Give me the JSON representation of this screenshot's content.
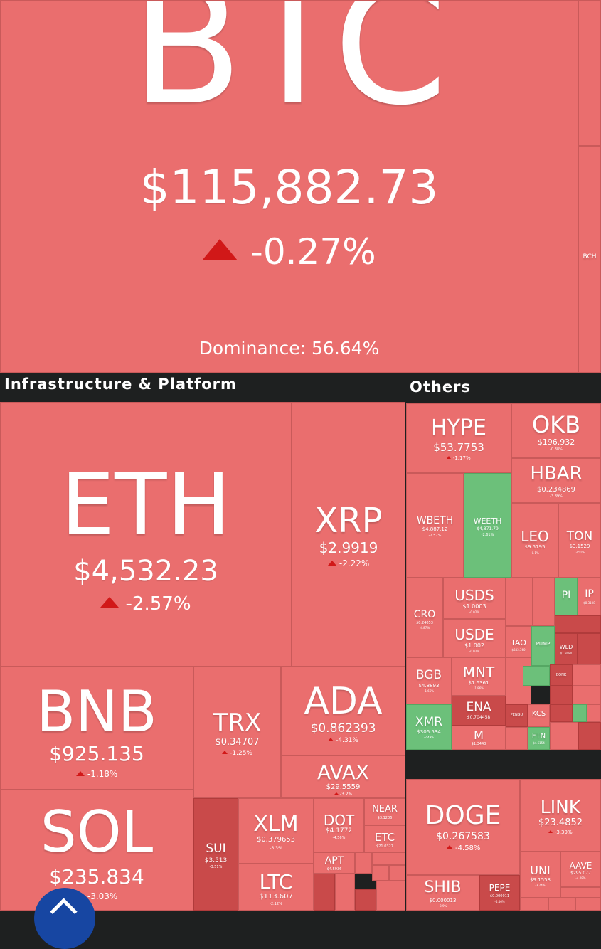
{
  "btc": {
    "symbol": "BTC",
    "price": "$115,882.73",
    "change": "-0.27%",
    "dominance": "Dominance: 56.64%"
  },
  "bch": {
    "symbol": "BCH"
  },
  "sections": {
    "infra": "Infrastructure & Platform",
    "others": "Others"
  },
  "infra": {
    "eth": {
      "symbol": "ETH",
      "price": "$4,532.23",
      "change": "-2.57%"
    },
    "xrp": {
      "symbol": "XRP",
      "price": "$2.9919",
      "change": "-2.22%"
    },
    "bnb": {
      "symbol": "BNB",
      "price": "$925.135",
      "change": "-1.18%"
    },
    "trx": {
      "symbol": "TRX",
      "price": "$0.34707",
      "change": "-1.25%"
    },
    "ada": {
      "symbol": "ADA",
      "price": "$0.862393",
      "change": "-4.31%"
    },
    "avax": {
      "symbol": "AVAX",
      "price": "$29.5559",
      "change": "-3.2%"
    },
    "sol": {
      "symbol": "SOL",
      "price": "$235.834",
      "change": "-3.03%"
    },
    "sui": {
      "symbol": "SUI",
      "price": "$3.513",
      "change": "-3.51%"
    },
    "xlm": {
      "symbol": "XLM",
      "price": "$0.379653",
      "change": "-3.3%"
    },
    "dot": {
      "symbol": "DOT",
      "price": "$4.1772",
      "change": "-4.56%"
    },
    "near": {
      "symbol": "NEAR",
      "price": "$3.1206"
    },
    "etc": {
      "symbol": "ETC",
      "price": "$21.0327"
    },
    "apt": {
      "symbol": "APT",
      "price": "$4.5936"
    },
    "ltc": {
      "symbol": "LTC",
      "price": "$113.607",
      "change": "-2.12%"
    }
  },
  "others": {
    "hype": {
      "symbol": "HYPE",
      "price": "$53.7753",
      "change": "-1.17%"
    },
    "okb": {
      "symbol": "OKB",
      "price": "$196.932",
      "change": "-0.38%"
    },
    "hbar": {
      "symbol": "HBAR",
      "price": "$0.234869",
      "change": "-3.89%"
    },
    "wbeth": {
      "symbol": "WBETH",
      "price": "$4,887.12",
      "change": "-2.57%"
    },
    "weeth": {
      "symbol": "WEETH",
      "price": "$4,871.79",
      "change": "-2.61%"
    },
    "leo": {
      "symbol": "LEO",
      "price": "$9.5795",
      "change": "-0.1%"
    },
    "ton": {
      "symbol": "TON",
      "price": "$3.1529",
      "change": "-3.51%"
    },
    "cro": {
      "symbol": "CRO",
      "price": "$0.24053",
      "change": "-4.87%"
    },
    "usds": {
      "symbol": "USDS",
      "price": "$1.0003",
      "change": "-0.02%"
    },
    "pi": {
      "symbol": "PI"
    },
    "ip": {
      "symbol": "IP",
      "price": "$8.3108"
    },
    "usde": {
      "symbol": "USDE",
      "price": "$1.002",
      "change": "-0.02%"
    },
    "tao": {
      "symbol": "TAO",
      "price": "$343.360"
    },
    "pump": {
      "symbol": "PUMP"
    },
    "wld": {
      "symbol": "WLD",
      "price": "$1.3080"
    },
    "bgb": {
      "symbol": "BGB",
      "price": "$4.8893",
      "change": "-1.66%"
    },
    "mnt": {
      "symbol": "MNT",
      "price": "$1.6361",
      "change": "-1.86%"
    },
    "ena": {
      "symbol": "ENA",
      "price": "$0.704458"
    },
    "xmr": {
      "symbol": "XMR",
      "price": "$306.534",
      "change": "-2.49%"
    },
    "m": {
      "symbol": "M",
      "price": "$1.3443"
    },
    "kcs": {
      "symbol": "KCS"
    },
    "ftn": {
      "symbol": "FTN",
      "price": "$4.6154"
    },
    "pengu": {
      "symbol": "PENGU"
    },
    "bonk": {
      "symbol": "BONK"
    },
    "doge": {
      "symbol": "DOGE",
      "price": "$0.267583",
      "change": "-4.58%"
    },
    "link": {
      "symbol": "LINK",
      "price": "$23.4852",
      "change": "-3.39%"
    },
    "uni": {
      "symbol": "UNI",
      "price": "$9.1558",
      "change": "-3.74%"
    },
    "aave": {
      "symbol": "AAVE",
      "price": "$295.077",
      "change": "-4.48%"
    },
    "shib": {
      "symbol": "SHIB",
      "price": "$0.000013",
      "change": "-3.9%"
    },
    "pepe": {
      "symbol": "PEPE",
      "price": "$0.000011",
      "change": "-5.46%"
    }
  },
  "colors": {
    "down": "#ea6e6e",
    "up": "#6cc07a",
    "deep_down": "#c94a4a",
    "background": "#1e2020",
    "fab": "#1746a2"
  }
}
